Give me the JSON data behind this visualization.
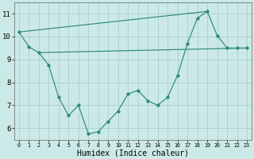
{
  "line1_x": [
    0,
    1,
    2,
    3,
    4,
    5,
    6,
    7,
    8,
    9,
    10,
    11,
    12,
    13,
    14,
    15,
    16,
    17,
    18,
    19,
    20,
    21,
    22,
    23
  ],
  "line1_y": [
    10.2,
    9.55,
    9.3,
    8.75,
    7.35,
    6.55,
    7.0,
    5.75,
    5.85,
    6.3,
    6.75,
    7.5,
    7.65,
    7.2,
    7.0,
    7.35,
    8.3,
    9.7,
    10.8,
    11.1,
    10.05,
    9.5,
    9.5,
    9.5
  ],
  "line2_x": [
    0,
    19
  ],
  "line2_y": [
    10.2,
    11.1
  ],
  "line3_x": [
    2,
    23
  ],
  "line3_y": [
    9.3,
    9.5
  ],
  "color": "#2E8B72",
  "bg_color": "#CBE9E7",
  "grid_major_color": "#AACFCD",
  "xlabel": "Humidex (Indice chaleur)",
  "ylim": [
    5.5,
    11.5
  ],
  "xlim": [
    -0.5,
    23.5
  ],
  "yticks": [
    6,
    7,
    8,
    9,
    10,
    11
  ],
  "xticks": [
    0,
    1,
    2,
    3,
    4,
    5,
    6,
    7,
    8,
    9,
    10,
    11,
    12,
    13,
    14,
    15,
    16,
    17,
    18,
    19,
    20,
    21,
    22,
    23
  ],
  "xlabel_fontsize": 7.0,
  "ytick_fontsize": 6.5,
  "xtick_fontsize": 4.8
}
